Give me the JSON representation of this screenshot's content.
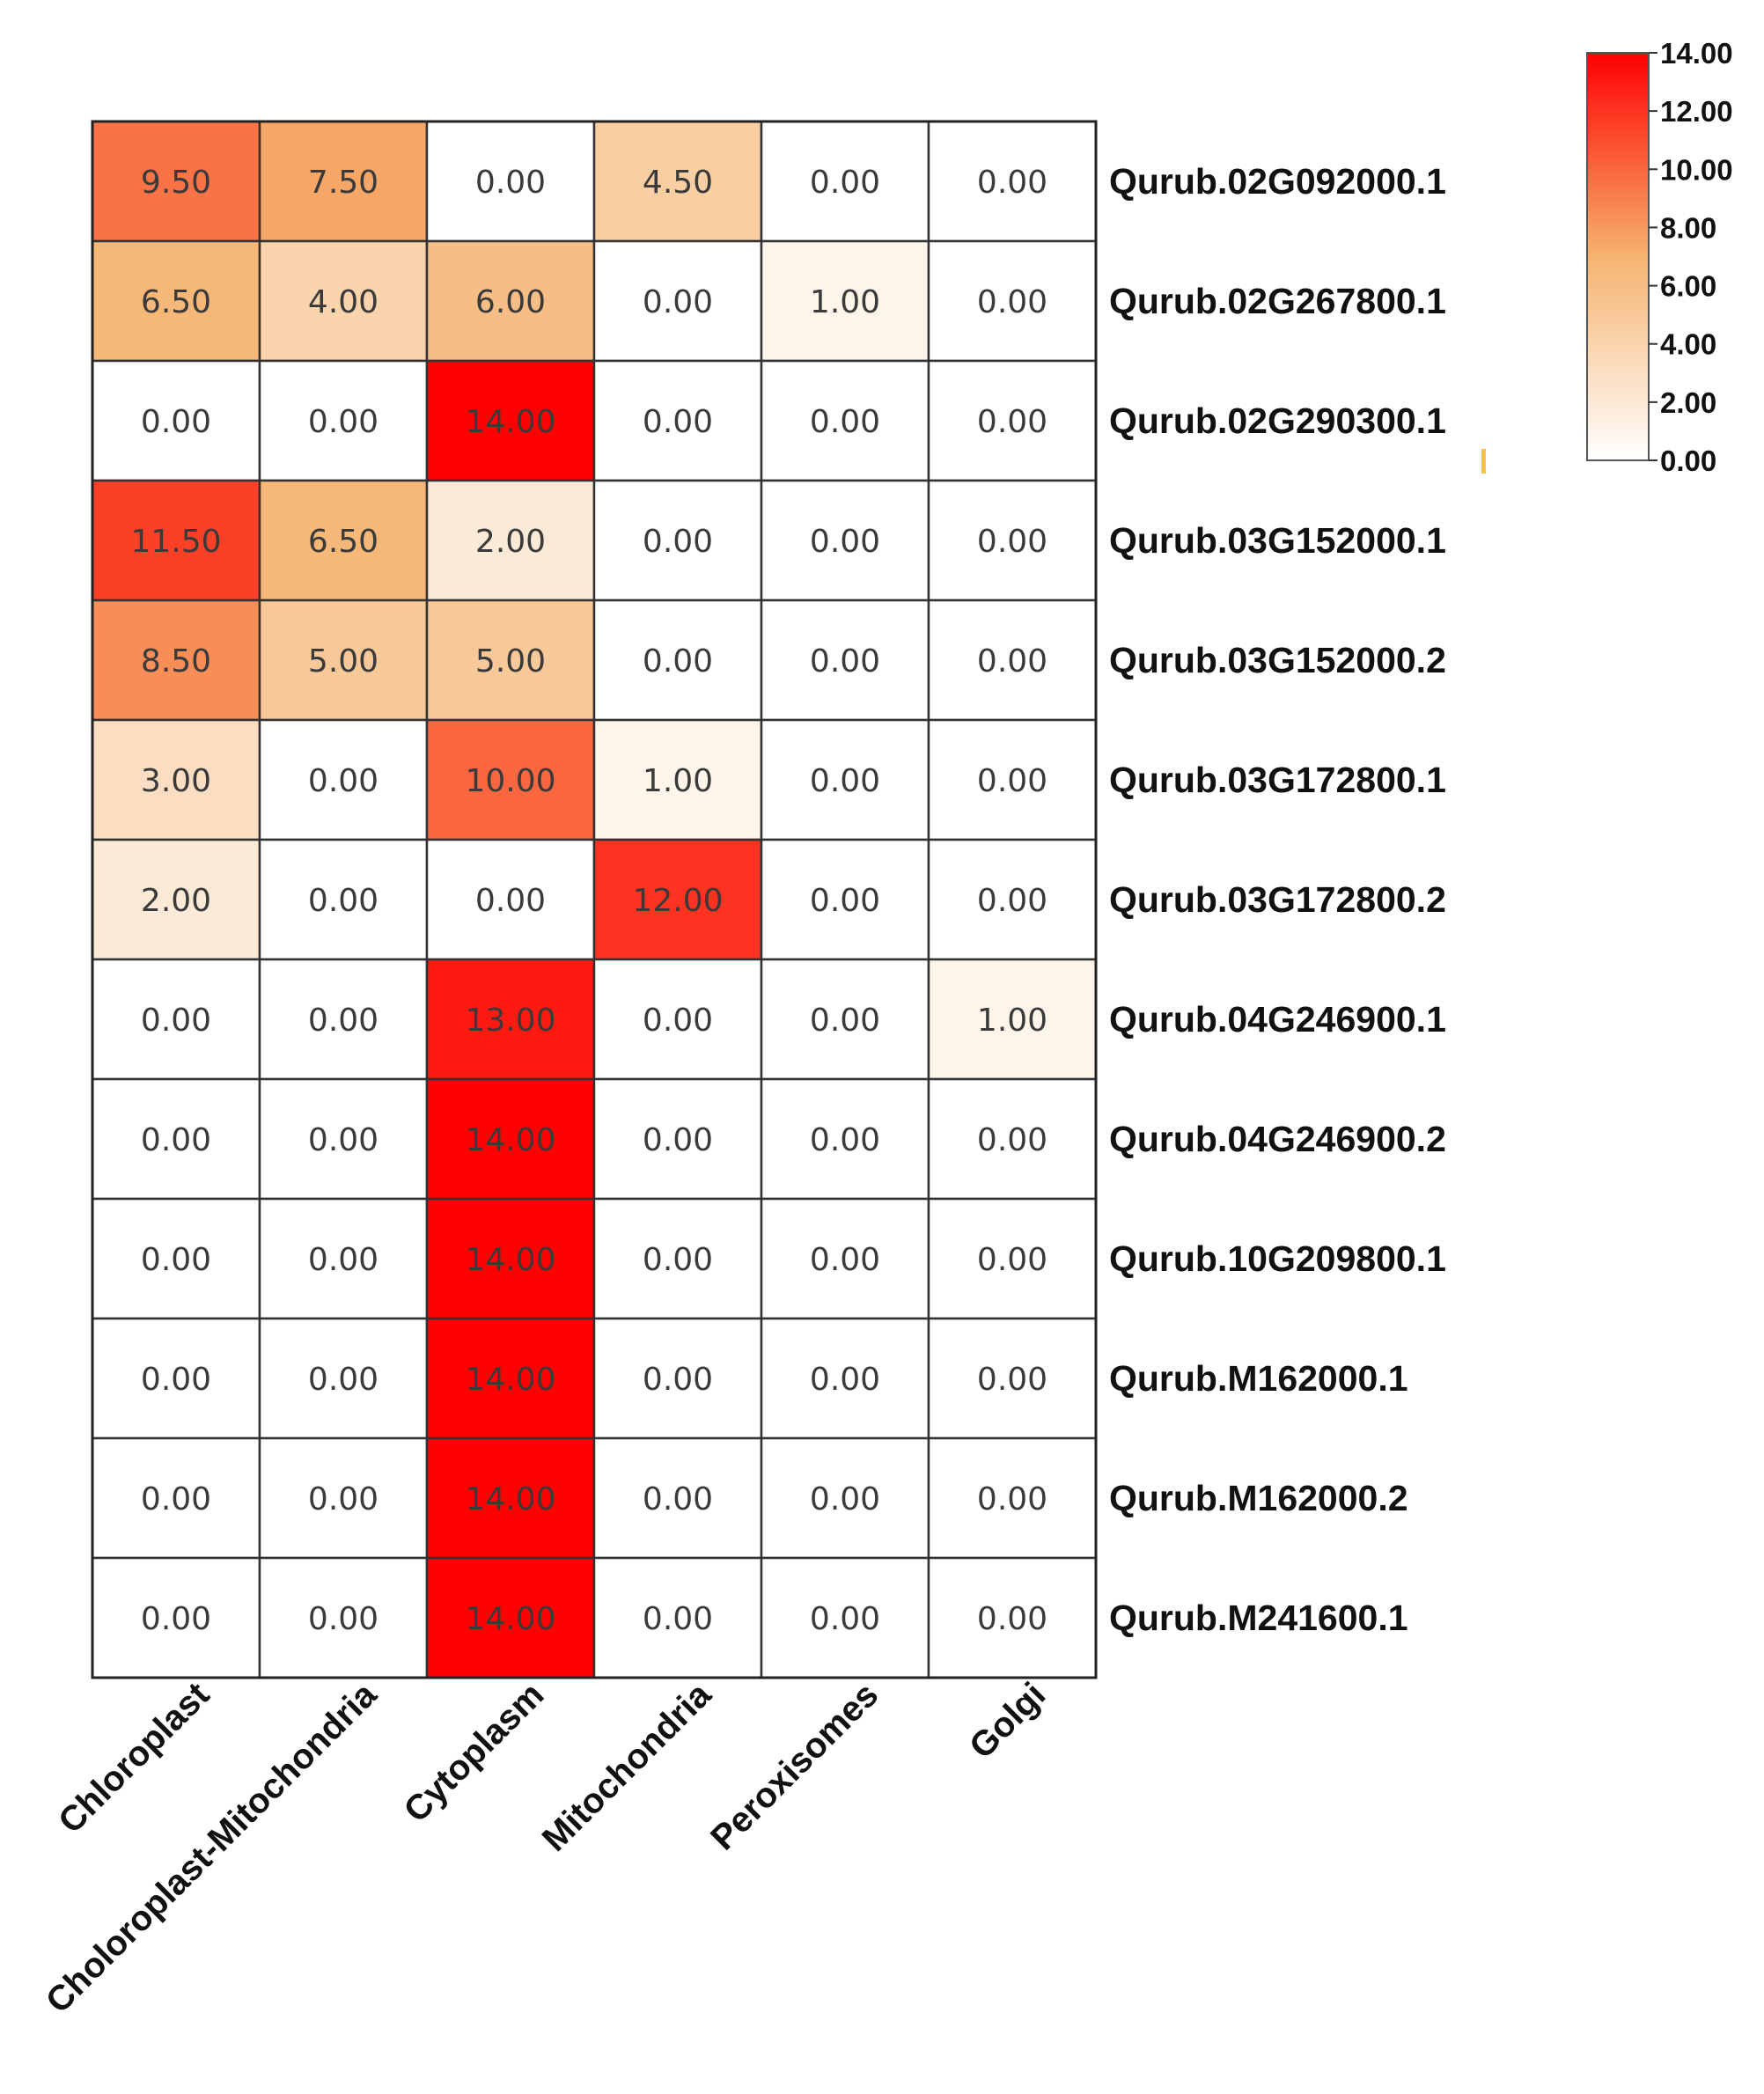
{
  "chart_data": {
    "type": "heatmap",
    "title": "",
    "columns": [
      "Chloroplast",
      "Choloroplast-Mitochondria",
      "Cytoplasm",
      "Mitochondria",
      "Peroxisomes",
      "Golgi"
    ],
    "rows": [
      "Qurub.02G092000.1",
      "Qurub.02G267800.1",
      "Qurub.02G290300.1",
      "Qurub.03G152000.1",
      "Qurub.03G152000.2",
      "Qurub.03G172800.1",
      "Qurub.03G172800.2",
      "Qurub.04G246900.1",
      "Qurub.04G246900.2",
      "Qurub.10G209800.1",
      "Qurub.M162000.1",
      "Qurub.M162000.2",
      "Qurub.M241600.1"
    ],
    "values": [
      [
        9.5,
        7.5,
        0,
        4.5,
        0,
        0
      ],
      [
        6.5,
        4,
        6,
        0,
        1,
        0
      ],
      [
        0,
        0,
        14,
        0,
        0,
        0
      ],
      [
        11.5,
        6.5,
        2,
        0,
        0,
        0
      ],
      [
        8.5,
        5,
        5,
        0,
        0,
        0
      ],
      [
        3,
        0,
        10,
        1,
        0,
        0
      ],
      [
        2,
        0,
        0,
        12,
        0,
        0
      ],
      [
        0,
        0,
        13,
        0,
        0,
        1
      ],
      [
        0,
        0,
        14,
        0,
        0,
        0
      ],
      [
        0,
        0,
        14,
        0,
        0,
        0
      ],
      [
        0,
        0,
        14,
        0,
        0,
        0
      ],
      [
        0,
        0,
        14,
        0,
        0,
        0
      ],
      [
        0,
        0,
        14,
        0,
        0,
        0
      ]
    ],
    "value_format_decimals": 2,
    "colorbar": {
      "min": 0,
      "max": 14,
      "ticks": [
        14,
        12,
        10,
        8,
        6,
        4,
        2,
        0
      ],
      "tick_labels": [
        "14.00",
        "12.00",
        "10.00",
        "8.00",
        "6.00",
        "4.00",
        "2.00",
        "0.00"
      ],
      "colors": {
        "low": "#ffffff",
        "mid": "#f5b36f",
        "high": "#ff0000"
      },
      "placement": "top-right"
    }
  }
}
